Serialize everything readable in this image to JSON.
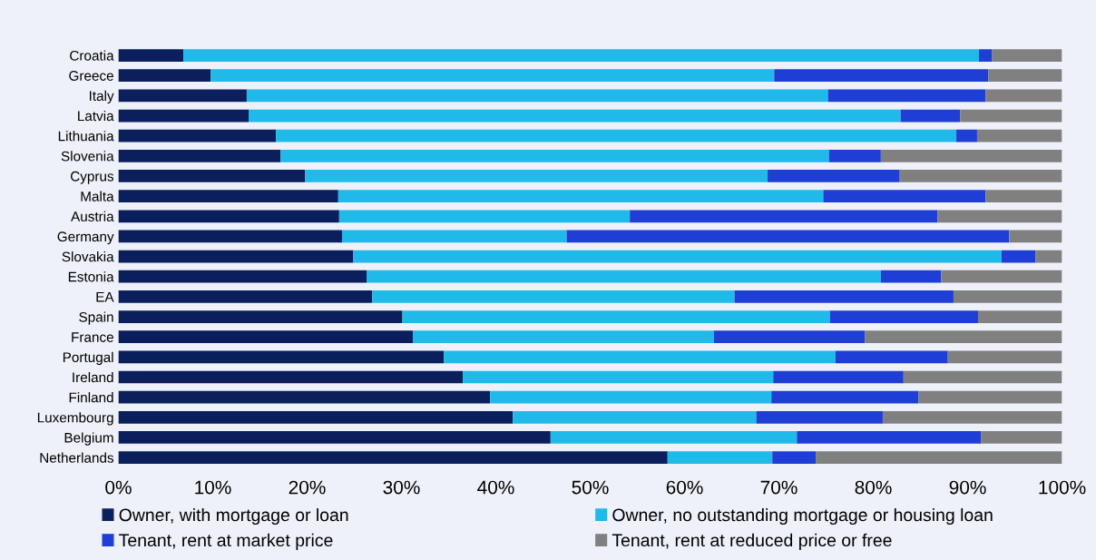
{
  "chart_data": {
    "type": "bar",
    "orientation": "horizontal",
    "stacked": true,
    "categories": [
      "Croatia",
      "Greece",
      "Italy",
      "Latvia",
      "Lithuania",
      "Slovenia",
      "Cyprus",
      "Malta",
      "Austria",
      "Germany",
      "Slovakia",
      "Estonia",
      "EA",
      "Spain",
      "France",
      "Portugal",
      "Ireland",
      "Finland",
      "Luxembourg",
      "Belgium",
      "Netherlands"
    ],
    "series": [
      {
        "name": "Owner, with mortgage or loan",
        "color": "#0b1f5c",
        "values": [
          6.9,
          9.8,
          13.6,
          13.8,
          16.7,
          17.2,
          19.8,
          23.3,
          23.4,
          23.7,
          24.9,
          26.3,
          26.9,
          30.1,
          31.2,
          34.5,
          36.5,
          39.4,
          41.8,
          45.8,
          58.2
        ]
      },
      {
        "name": "Owner, no outstanding mortgage or housing loan",
        "color": "#1fb9ea",
        "values": [
          84.3,
          59.7,
          61.6,
          69.1,
          72.1,
          58.1,
          49.0,
          51.4,
          30.8,
          23.8,
          68.7,
          54.5,
          38.4,
          45.3,
          31.9,
          41.5,
          32.9,
          29.8,
          25.8,
          26.1,
          11.1
        ]
      },
      {
        "name": "Tenant, rent at market price",
        "color": "#1f3ed6",
        "values": [
          1.4,
          22.7,
          16.7,
          6.3,
          2.2,
          5.5,
          14.0,
          17.2,
          32.6,
          46.9,
          3.6,
          6.4,
          23.2,
          15.7,
          16.0,
          11.9,
          13.8,
          15.6,
          13.4,
          19.5,
          4.6
        ]
      },
      {
        "name": "Tenant, rent at reduced price or free",
        "color": "#808080",
        "values": [
          7.4,
          7.8,
          8.1,
          10.8,
          9.0,
          19.2,
          17.2,
          8.1,
          13.2,
          5.6,
          2.8,
          12.8,
          11.5,
          8.9,
          20.9,
          12.1,
          16.8,
          15.2,
          19.0,
          8.6,
          26.1
        ]
      }
    ],
    "xlim": [
      0,
      100
    ],
    "xticks": [
      {
        "value": 0,
        "label": "0%"
      },
      {
        "value": 10,
        "label": "10%"
      },
      {
        "value": 20,
        "label": "20%"
      },
      {
        "value": 30,
        "label": "30%"
      },
      {
        "value": 40,
        "label": "40%"
      },
      {
        "value": 50,
        "label": "50%"
      },
      {
        "value": 60,
        "label": "60%"
      },
      {
        "value": 70,
        "label": "70%"
      },
      {
        "value": 80,
        "label": "80%"
      },
      {
        "value": 90,
        "label": "90%"
      },
      {
        "value": 100,
        "label": "100%"
      }
    ],
    "grid": false,
    "legend": "bottom"
  }
}
